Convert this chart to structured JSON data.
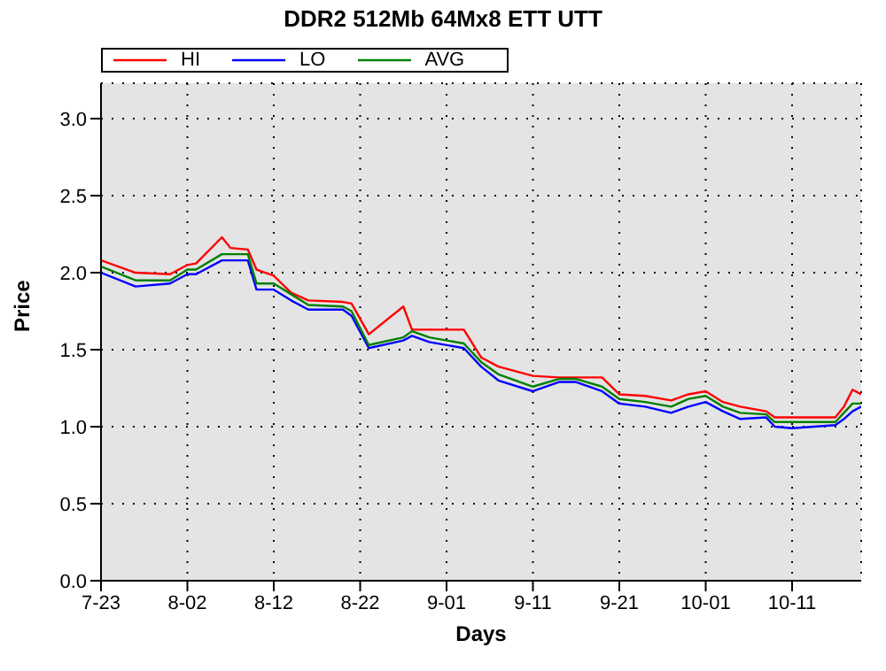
{
  "chart_data": {
    "type": "line",
    "title": "DDR2 512Mb 64Mx8 ETT UTT",
    "xlabel": "Days",
    "ylabel": "Price",
    "x": [
      "--07-23",
      "--07-27",
      "--07-31",
      "--08-02",
      "--08-03",
      "--08-06",
      "--08-07",
      "--08-09",
      "--08-10",
      "--08-12",
      "--08-14",
      "--08-16",
      "--08-20",
      "--08-21",
      "--08-23",
      "--08-27",
      "--08-28",
      "--08-30",
      "--09-03",
      "--09-05",
      "--09-07",
      "--09-11",
      "--09-14",
      "--09-16",
      "--09-19",
      "--09-21",
      "--09-24",
      "--09-27",
      "--09-29",
      "--10-01",
      "--10-03",
      "--10-05",
      "--10-08",
      "--10-09",
      "--10-11",
      "--10-16",
      "--10-17",
      "--10-18",
      "--10-19"
    ],
    "series": [
      {
        "name": "HI",
        "color": "#ff0000",
        "values": [
          2.08,
          2.0,
          1.99,
          2.05,
          2.06,
          2.23,
          2.16,
          2.15,
          2.02,
          1.98,
          1.87,
          1.82,
          1.81,
          1.8,
          1.6,
          1.78,
          1.63,
          1.63,
          1.63,
          1.45,
          1.39,
          1.33,
          1.32,
          1.32,
          1.32,
          1.21,
          1.2,
          1.17,
          1.21,
          1.23,
          1.16,
          1.13,
          1.1,
          1.06,
          1.06,
          1.06,
          1.13,
          1.24,
          1.21
        ]
      },
      {
        "name": "LO",
        "color": "#0000ff",
        "values": [
          2.0,
          1.91,
          1.93,
          1.99,
          1.99,
          2.08,
          2.08,
          2.08,
          1.89,
          1.89,
          1.82,
          1.76,
          1.76,
          1.72,
          1.51,
          1.56,
          1.59,
          1.55,
          1.51,
          1.39,
          1.3,
          1.23,
          1.29,
          1.29,
          1.23,
          1.15,
          1.13,
          1.09,
          1.13,
          1.16,
          1.1,
          1.05,
          1.06,
          1.0,
          0.99,
          1.01,
          1.05,
          1.1,
          1.13
        ]
      },
      {
        "name": "AVG",
        "color": "#008000",
        "values": [
          2.04,
          1.95,
          1.95,
          2.02,
          2.02,
          2.12,
          2.12,
          2.12,
          1.93,
          1.93,
          1.86,
          1.79,
          1.78,
          1.75,
          1.53,
          1.58,
          1.62,
          1.58,
          1.54,
          1.42,
          1.34,
          1.26,
          1.31,
          1.31,
          1.26,
          1.18,
          1.16,
          1.13,
          1.18,
          1.2,
          1.13,
          1.09,
          1.08,
          1.03,
          1.03,
          1.03,
          1.09,
          1.15,
          1.15
        ]
      }
    ],
    "xlim": [
      "--07-23",
      "--10-19"
    ],
    "xticks": [
      {
        "value": "--07-23",
        "label": "7-23"
      },
      {
        "value": "--08-02",
        "label": "8-02"
      },
      {
        "value": "--08-12",
        "label": "8-12"
      },
      {
        "value": "--08-22",
        "label": "8-22"
      },
      {
        "value": "--09-01",
        "label": "9-01"
      },
      {
        "value": "--09-11",
        "label": "9-11"
      },
      {
        "value": "--09-21",
        "label": "9-21"
      },
      {
        "value": "--10-01",
        "label": "10-01"
      },
      {
        "value": "--10-11",
        "label": "10-11"
      }
    ],
    "ylim": [
      0,
      3.23
    ],
    "yticks": [
      {
        "value": 0,
        "label": "0.0"
      },
      {
        "value": 0.5,
        "label": "0.5"
      },
      {
        "value": 1,
        "label": "1.0"
      },
      {
        "value": 1.5,
        "label": "1.5"
      },
      {
        "value": 2,
        "label": "2.0"
      },
      {
        "value": 2.5,
        "label": "2.5"
      },
      {
        "value": 3,
        "label": "3.0"
      }
    ],
    "grid": true,
    "legend": "top left",
    "marker": "none"
  }
}
